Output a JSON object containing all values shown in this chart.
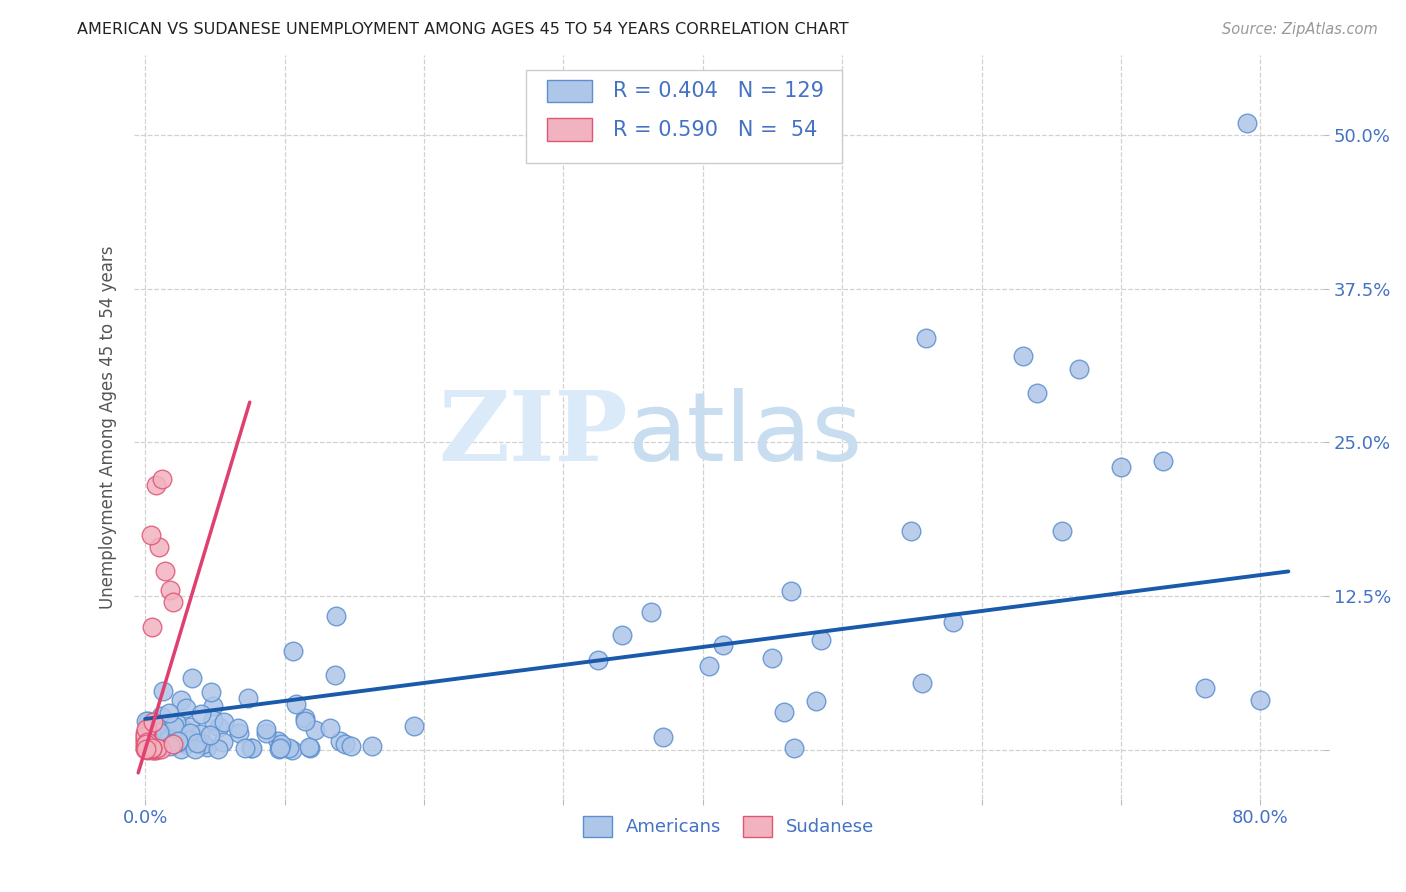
{
  "title": "AMERICAN VS SUDANESE UNEMPLOYMENT AMONG AGES 45 TO 54 YEARS CORRELATION CHART",
  "source": "Source: ZipAtlas.com",
  "ylabel_label": "Unemployment Among Ages 45 to 54 years",
  "xlim": [
    -0.008,
    0.845
  ],
  "ylim": [
    -0.04,
    0.565
  ],
  "americans_R": 0.404,
  "americans_N": 129,
  "sudanese_R": 0.59,
  "sudanese_N": 54,
  "color_american_fill": "#aec6e8",
  "color_american_edge": "#5b8fcf",
  "color_sudanese_fill": "#f2b3c0",
  "color_sudanese_edge": "#e05575",
  "color_american_line": "#1a5aaa",
  "color_sudanese_line": "#e04070",
  "legend_text_color": "#4472c4",
  "title_color": "#222222",
  "axis_label_color": "#555555",
  "tick_color": "#4472c4",
  "background_color": "#ffffff",
  "grid_color": "#cccccc",
  "figsize": [
    14.06,
    8.92
  ],
  "dpi": 100,
  "am_trend_x0": 0.0,
  "am_trend_y0": 0.025,
  "am_trend_x1": 0.82,
  "am_trend_y1": 0.145,
  "su_trend_x0": 0.0,
  "su_trend_y0": 0.0,
  "su_trend_x1": 0.065,
  "su_trend_y1": 0.245
}
